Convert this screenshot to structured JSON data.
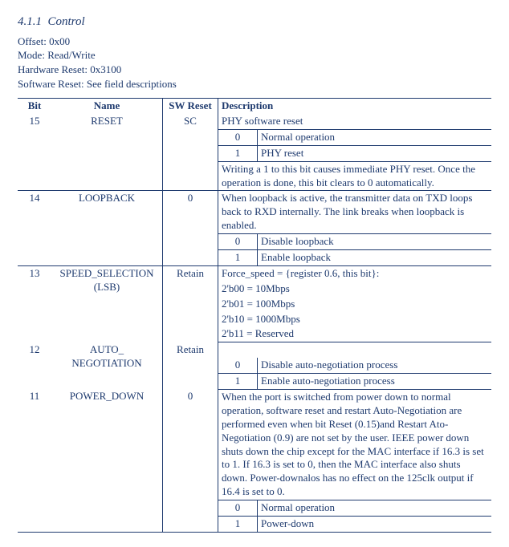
{
  "section": {
    "number": "4.1.1",
    "title": "Control"
  },
  "meta": {
    "offset_label": "Offset:",
    "offset_value": "0x00",
    "mode_label": "Mode:",
    "mode_value": "Read/Write",
    "hwreset_label": "Hardware Reset:",
    "hwreset_value": "0x3100",
    "swreset_label": "Software Reset:",
    "swreset_value": "See field descriptions"
  },
  "headers": {
    "bit": "Bit",
    "name": "Name",
    "swreset": "SW Reset",
    "description": "Description"
  },
  "rows": {
    "r15": {
      "bit": "15",
      "name": "RESET",
      "sw": "SC",
      "desc": "PHY software reset",
      "sub0_k": "0",
      "sub0_v": "Normal operation",
      "sub1_k": "1",
      "sub1_v": "PHY reset",
      "note": "Writing a 1 to this bit causes immediate PHY reset. Once the operation is done, this bit clears to 0 automatically."
    },
    "r14": {
      "bit": "14",
      "name": "LOOPBACK",
      "sw": "0",
      "desc": "When loopback is active, the transmitter data on TXD loops back to RXD internally. The link breaks when loopback is enabled.",
      "sub0_k": "0",
      "sub0_v": "Disable loopback",
      "sub1_k": "1",
      "sub1_v": "Enable loopback"
    },
    "r13": {
      "bit": "13",
      "name_l1": "SPEED_SELECTION",
      "name_l2": "(LSB)",
      "sw": "Retain",
      "l1": "Force_speed = {register 0.6, this bit}:",
      "l2": "2'b00 = 10Mbps",
      "l3": "2'b01 = 100Mbps",
      "l4": "2'b10 = 1000Mbps",
      "l5": "2'b11 = Reserved"
    },
    "r12": {
      "bit": "12",
      "name_l1": "AUTO_",
      "name_l2": "NEGOTIATION",
      "sw": "Retain",
      "sub0_k": "0",
      "sub0_v": "Disable auto-negotiation process",
      "sub1_k": "1",
      "sub1_v": "Enable auto-negotiation process"
    },
    "r11": {
      "bit": "11",
      "name": "POWER_DOWN",
      "sw": "0",
      "desc": "When the port is switched from power down to normal operation, software reset and restart Auto-Negotiation are performed even when bit Reset (0.15)and Restart Ato-Negotiation (0.9) are not set by the user. IEEE power down shuts down the chip except for the MAC interface if 16.3 is set to 1. If 16.3 is set to 0, then the MAC interface also shuts down. Power-downalos has no effect on the 125clk output if 16.4 is set to 0.",
      "sub0_k": "0",
      "sub0_v": "Normal operation",
      "sub1_k": "1",
      "sub1_v": "Power-down"
    }
  }
}
